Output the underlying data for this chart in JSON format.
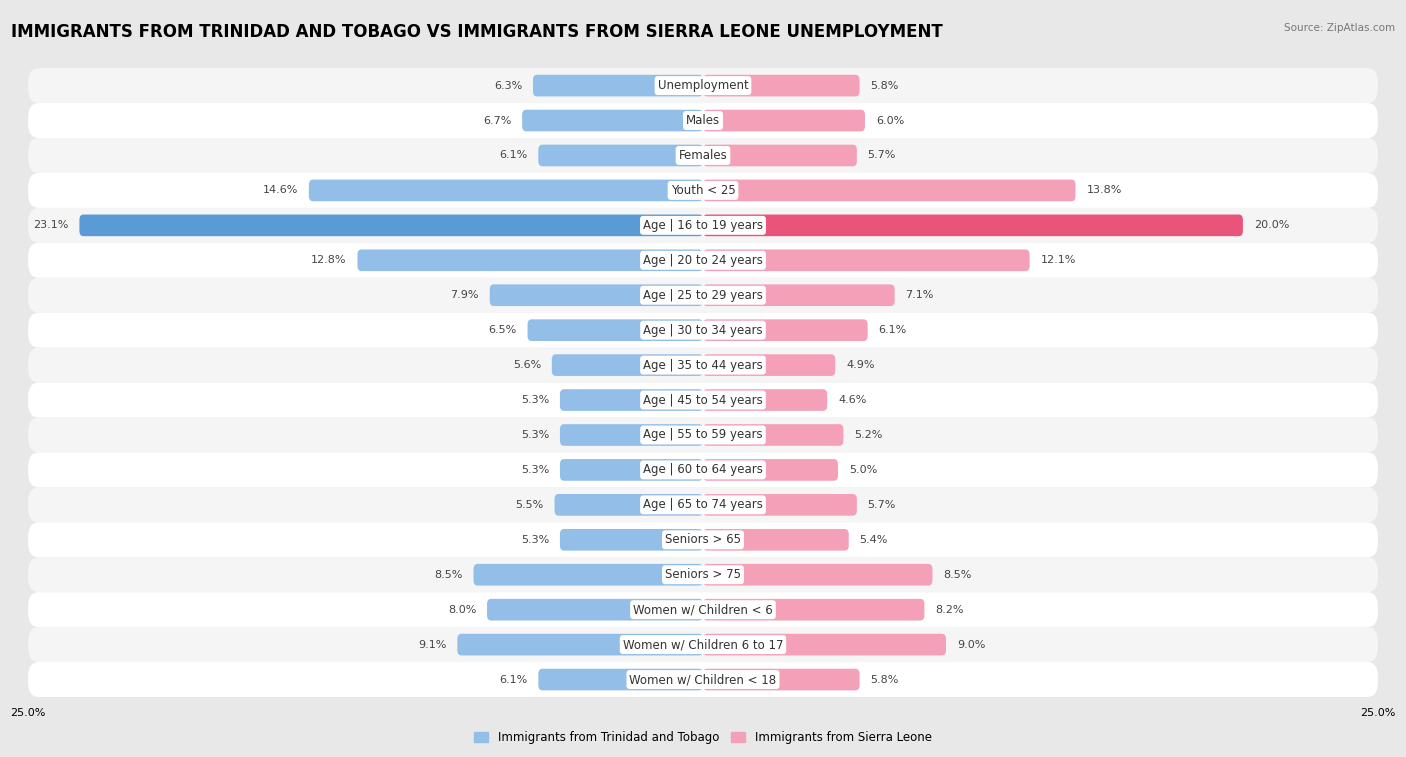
{
  "title": "IMMIGRANTS FROM TRINIDAD AND TOBAGO VS IMMIGRANTS FROM SIERRA LEONE UNEMPLOYMENT",
  "source": "Source: ZipAtlas.com",
  "categories": [
    "Unemployment",
    "Males",
    "Females",
    "Youth < 25",
    "Age | 16 to 19 years",
    "Age | 20 to 24 years",
    "Age | 25 to 29 years",
    "Age | 30 to 34 years",
    "Age | 35 to 44 years",
    "Age | 45 to 54 years",
    "Age | 55 to 59 years",
    "Age | 60 to 64 years",
    "Age | 65 to 74 years",
    "Seniors > 65",
    "Seniors > 75",
    "Women w/ Children < 6",
    "Women w/ Children 6 to 17",
    "Women w/ Children < 18"
  ],
  "left_values": [
    6.3,
    6.7,
    6.1,
    14.6,
    23.1,
    12.8,
    7.9,
    6.5,
    5.6,
    5.3,
    5.3,
    5.3,
    5.5,
    5.3,
    8.5,
    8.0,
    9.1,
    6.1
  ],
  "right_values": [
    5.8,
    6.0,
    5.7,
    13.8,
    20.0,
    12.1,
    7.1,
    6.1,
    4.9,
    4.6,
    5.2,
    5.0,
    5.7,
    5.4,
    8.5,
    8.2,
    9.0,
    5.8
  ],
  "left_color": "#92bee8",
  "right_color": "#f4a0b8",
  "left_highlight_color": "#5b9bd5",
  "right_highlight_color": "#e8547a",
  "highlight_index": 4,
  "xlim": 25.0,
  "legend_left": "Immigrants from Trinidad and Tobago",
  "legend_right": "Immigrants from Sierra Leone",
  "background_color": "#e8e8e8",
  "row_bg_odd": "#f5f5f5",
  "row_bg_even": "#ffffff",
  "bar_height": 0.62,
  "title_fontsize": 12,
  "label_fontsize": 8.5,
  "value_fontsize": 8.0
}
